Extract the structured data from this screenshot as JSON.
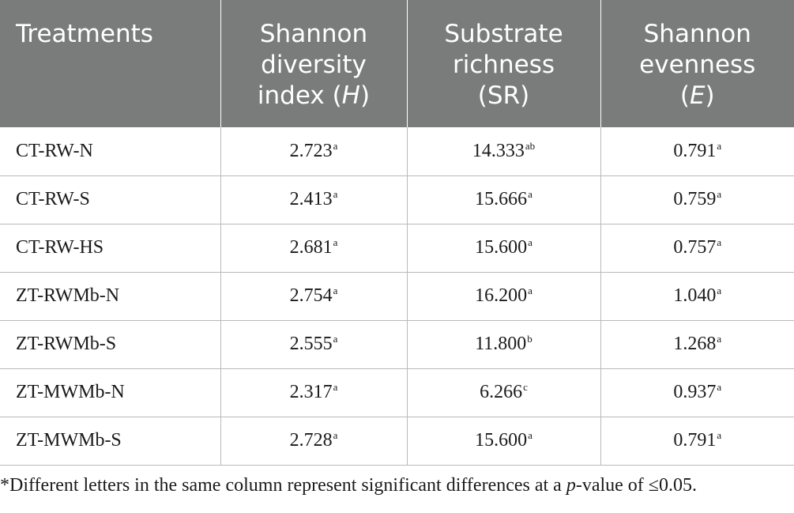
{
  "table": {
    "headers": [
      {
        "lines": [
          "Treatments"
        ]
      },
      {
        "lines": [
          "Shannon",
          "diversity",
          "index ("
        ],
        "symbol": "H",
        "suffix": ")"
      },
      {
        "lines": [
          "Substrate",
          "richness",
          "(SR)"
        ]
      },
      {
        "lines": [
          "Shannon",
          "evenness",
          "("
        ],
        "symbol": "E",
        "suffix": ")"
      }
    ],
    "rows": [
      {
        "treatment": "CT-RW-N",
        "shannon_h": "2.723",
        "shannon_h_sig": "a",
        "sr": "14.333",
        "sr_sig": "ab",
        "evenness": "0.791",
        "evenness_sig": "a"
      },
      {
        "treatment": "CT-RW-S",
        "shannon_h": "2.413",
        "shannon_h_sig": "a",
        "sr": "15.666",
        "sr_sig": "a",
        "evenness": "0.759",
        "evenness_sig": "a"
      },
      {
        "treatment": "CT-RW-HS",
        "shannon_h": "2.681",
        "shannon_h_sig": "a",
        "sr": "15.600",
        "sr_sig": "a",
        "evenness": "0.757",
        "evenness_sig": "a"
      },
      {
        "treatment": "ZT-RWMb-N",
        "shannon_h": "2.754",
        "shannon_h_sig": "a",
        "sr": "16.200",
        "sr_sig": "a",
        "evenness": "1.040",
        "evenness_sig": "a"
      },
      {
        "treatment": "ZT-RWMb-S",
        "shannon_h": "2.555",
        "shannon_h_sig": "a",
        "sr": "11.800",
        "sr_sig": "b",
        "evenness": "1.268",
        "evenness_sig": "a"
      },
      {
        "treatment": "ZT-MWMb-N",
        "shannon_h": "2.317",
        "shannon_h_sig": "a",
        "sr": "6.266",
        "sr_sig": "c",
        "evenness": "0.937",
        "evenness_sig": "a"
      },
      {
        "treatment": "ZT-MWMb-S",
        "shannon_h": "2.728",
        "shannon_h_sig": "a",
        "sr": "15.600",
        "sr_sig": "a",
        "evenness": "0.791",
        "evenness_sig": "a"
      }
    ]
  },
  "footnote": {
    "before": "*Different letters in the same column represent significant differences at a ",
    "italic": "p",
    "after": "-value of ≤0.05."
  },
  "colors": {
    "header_bg": "#7a7c7b",
    "header_text": "#ffffff",
    "grid_line": "#b9b9b9",
    "body_text": "#1a1a1a"
  }
}
